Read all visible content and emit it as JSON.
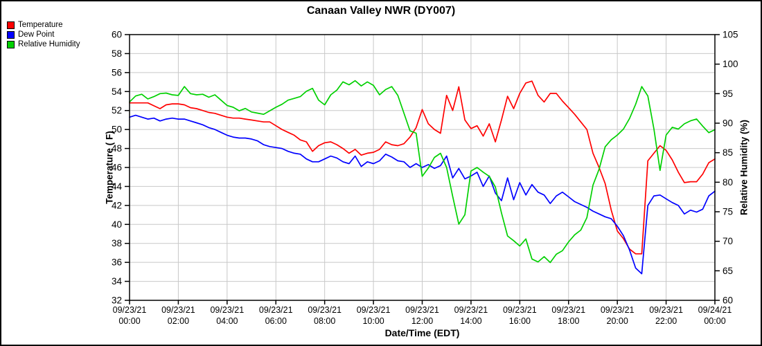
{
  "chart_data": {
    "type": "line",
    "title": "Canaan Valley NWR (DY007)",
    "xlabel": "Date/Time (EDT)",
    "ylabel_left": "Temperature ( F)",
    "ylabel_right": "Relative Humidity (%)",
    "grid": true,
    "legend_position": "top-left",
    "xlim_hours": [
      0,
      24
    ],
    "x_start": 0,
    "x_step_hours": 0.25,
    "ylim_left": [
      32,
      60
    ],
    "ylim_right": [
      60,
      105
    ],
    "ytick_labels_left": [
      "60",
      "58",
      "56",
      "54",
      "52",
      "50",
      "48",
      "46",
      "44",
      "42",
      "40",
      "38",
      "36",
      "34",
      "32"
    ],
    "ytick_values_left": [
      60,
      58,
      56,
      54,
      52,
      50,
      48,
      46,
      44,
      42,
      40,
      38,
      36,
      34,
      32
    ],
    "ytick_labels_right": [
      "105",
      "100",
      "95",
      "90",
      "85",
      "80",
      "75",
      "70",
      "65",
      "60"
    ],
    "ytick_values_right": [
      105,
      100,
      95,
      90,
      85,
      80,
      75,
      70,
      65,
      60
    ],
    "xtick_hours": [
      0,
      2,
      4,
      6,
      8,
      10,
      12,
      14,
      16,
      18,
      20,
      22,
      24
    ],
    "x_tick_labels": [
      {
        "date": "09/23/21",
        "time": "00:00"
      },
      {
        "date": "09/23/21",
        "time": "02:00"
      },
      {
        "date": "09/23/21",
        "time": "04:00"
      },
      {
        "date": "09/23/21",
        "time": "06:00"
      },
      {
        "date": "09/23/21",
        "time": "08:00"
      },
      {
        "date": "09/23/21",
        "time": "10:00"
      },
      {
        "date": "09/23/21",
        "time": "12:00"
      },
      {
        "date": "09/23/21",
        "time": "14:00"
      },
      {
        "date": "09/23/21",
        "time": "16:00"
      },
      {
        "date": "09/23/21",
        "time": "18:00"
      },
      {
        "date": "09/23/21",
        "time": "20:00"
      },
      {
        "date": "09/23/21",
        "time": "22:00"
      },
      {
        "date": "09/24/21",
        "time": "00:00"
      }
    ],
    "colors": {
      "grid": "#c8c8c8",
      "axis": "#000000"
    },
    "series": [
      {
        "name": "Temperature",
        "axis": "left",
        "color": "#ff0000",
        "values": [
          52.8,
          52.8,
          52.8,
          52.8,
          52.5,
          52.2,
          52.6,
          52.7,
          52.7,
          52.6,
          52.3,
          52.2,
          52.0,
          51.8,
          51.7,
          51.5,
          51.3,
          51.2,
          51.2,
          51.1,
          51.0,
          50.9,
          50.8,
          50.8,
          50.4,
          50.0,
          49.7,
          49.4,
          48.9,
          48.7,
          47.7,
          48.3,
          48.6,
          48.7,
          48.4,
          48.0,
          47.5,
          47.9,
          47.3,
          47.5,
          47.6,
          47.9,
          48.7,
          48.4,
          48.3,
          48.5,
          49.2,
          50.2,
          52.1,
          50.6,
          50.0,
          49.6,
          53.6,
          52.0,
          54.5,
          51.0,
          50.1,
          50.4,
          49.3,
          50.6,
          48.7,
          51.0,
          53.5,
          52.2,
          53.8,
          54.9,
          55.1,
          53.6,
          52.9,
          53.8,
          53.8,
          53.0,
          52.3,
          51.6,
          50.8,
          50.0,
          47.5,
          46.0,
          44.3,
          41.5,
          39.3,
          38.5,
          37.4,
          36.9,
          36.9,
          46.7,
          47.5,
          48.3,
          47.8,
          46.8,
          45.5,
          44.4,
          44.5,
          44.5,
          45.3,
          46.5,
          46.9
        ]
      },
      {
        "name": "Dew Point",
        "axis": "left",
        "color": "#0000ff",
        "values": [
          51.3,
          51.5,
          51.3,
          51.1,
          51.2,
          50.9,
          51.1,
          51.2,
          51.1,
          51.1,
          50.9,
          50.7,
          50.5,
          50.2,
          50.0,
          49.7,
          49.4,
          49.2,
          49.1,
          49.1,
          49.0,
          48.8,
          48.4,
          48.2,
          48.1,
          48.0,
          47.7,
          47.5,
          47.4,
          46.9,
          46.6,
          46.6,
          46.9,
          47.2,
          47.0,
          46.6,
          46.4,
          47.2,
          46.1,
          46.6,
          46.4,
          46.7,
          47.4,
          47.1,
          46.7,
          46.6,
          46.0,
          46.4,
          46.0,
          46.3,
          45.9,
          46.2,
          47.2,
          44.9,
          45.9,
          44.8,
          45.1,
          45.5,
          44.0,
          45.1,
          43.3,
          42.5,
          44.9,
          42.6,
          44.4,
          43.1,
          44.2,
          43.4,
          43.1,
          42.2,
          43.0,
          43.4,
          42.9,
          42.4,
          42.1,
          41.8,
          41.4,
          41.1,
          40.8,
          40.6,
          39.8,
          38.8,
          37.3,
          35.4,
          34.8,
          42.0,
          43.0,
          43.1,
          42.7,
          42.3,
          42.0,
          41.1,
          41.5,
          41.3,
          41.6,
          43.0,
          43.5
        ]
      },
      {
        "name": "Relative Humidity",
        "axis": "right",
        "color": "#00d000",
        "values": [
          93.6,
          94.6,
          94.9,
          94.1,
          94.5,
          95.0,
          95.1,
          94.8,
          94.7,
          96.2,
          95.0,
          94.8,
          94.9,
          94.4,
          94.8,
          93.9,
          93.0,
          92.7,
          92.1,
          92.5,
          91.9,
          91.7,
          91.5,
          92.1,
          92.7,
          93.2,
          93.9,
          94.2,
          94.5,
          95.4,
          95.9,
          93.9,
          93.1,
          94.8,
          95.6,
          97.0,
          96.5,
          97.2,
          96.3,
          97.0,
          96.4,
          94.8,
          95.7,
          96.2,
          94.7,
          91.7,
          88.7,
          88.3,
          81.0,
          82.4,
          84.2,
          84.9,
          82.5,
          77.6,
          72.9,
          74.5,
          81.9,
          82.5,
          81.7,
          81.0,
          79.2,
          74.8,
          70.9,
          70.1,
          69.2,
          70.4,
          67.0,
          66.5,
          67.4,
          66.4,
          67.8,
          68.4,
          69.9,
          71.1,
          71.9,
          74.0,
          79.5,
          82.2,
          86.0,
          87.2,
          88.0,
          89.0,
          90.8,
          93.2,
          96.2,
          94.6,
          89.0,
          82.0,
          88.0,
          89.3,
          89.0,
          89.9,
          90.4,
          90.7,
          89.5,
          88.4,
          88.9
        ]
      }
    ]
  }
}
